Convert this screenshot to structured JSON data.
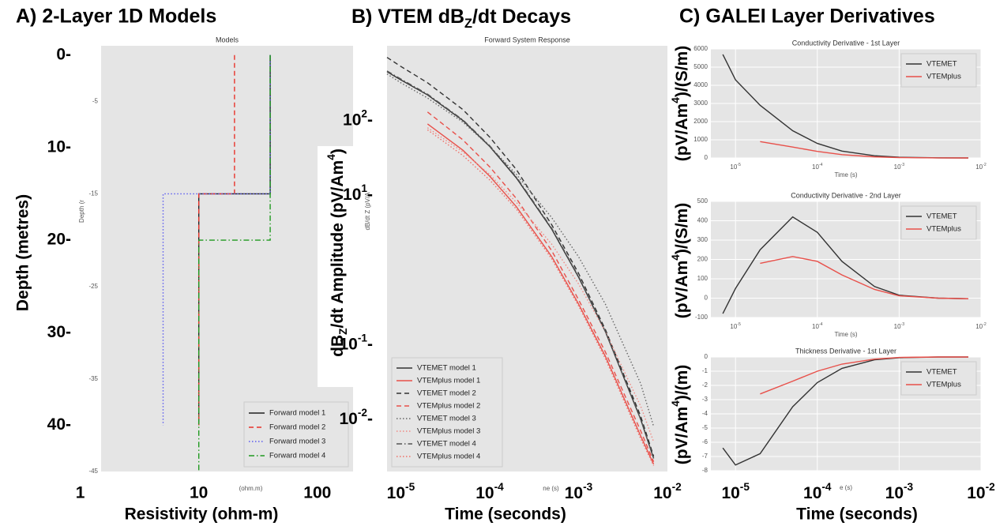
{
  "chart_data": [
    {
      "type": "line",
      "panel_title": "A) 2-Layer 1D Models",
      "title": "Models",
      "xlabel": "Resistivity (ohm-m)",
      "xlabel_small": "(ohm.m)",
      "ylabel": "Depth (metres)",
      "ylabel_small": "Depth (r",
      "xscale": "log",
      "xlim": [
        1.5,
        200
      ],
      "ylim": [
        -45,
        1
      ],
      "yticks": [
        -5,
        -15,
        -25,
        -35,
        -45
      ],
      "overlay_yticks": [
        {
          "value": 0,
          "label": "0-"
        },
        {
          "value": -10,
          "label": "10-"
        },
        {
          "value": -20,
          "label": "20-"
        },
        {
          "value": -30,
          "label": "30-"
        },
        {
          "value": -40,
          "label": "40-"
        }
      ],
      "overlay_xticks": [
        1,
        10,
        100
      ],
      "grid": false,
      "legend": "lower right",
      "series": [
        {
          "name": "Forward model 1",
          "color": "#222222",
          "dash": "solid",
          "x": [
            40,
            40,
            10,
            10
          ],
          "values": [
            0,
            -15,
            -15,
            -40
          ]
        },
        {
          "name": "Forward model 2",
          "color": "#e8322a",
          "dash": "dashed",
          "x": [
            20,
            20,
            10,
            10
          ],
          "values": [
            0,
            -15,
            -15,
            -40
          ]
        },
        {
          "name": "Forward model 3",
          "color": "#5b5bf0",
          "dash": "dotted",
          "x": [
            40,
            40,
            5,
            5
          ],
          "values": [
            0,
            -15,
            -15,
            -40
          ]
        },
        {
          "name": "Forward model 4",
          "color": "#1f9a1f",
          "dash": "dashdot",
          "x": [
            40,
            40,
            10,
            10
          ],
          "values": [
            0,
            -20,
            -20,
            -45
          ]
        }
      ]
    },
    {
      "type": "line",
      "panel_title": [
        {
          "text": "B) VTEM dB"
        },
        {
          "text": "Z",
          "style": "sub"
        },
        {
          "text": "/dt Decays"
        }
      ],
      "title": "Forward System Response",
      "xlabel": "Time (seconds)",
      "xlabel_small": "ne (s)",
      "ylabel": [
        {
          "text": "dB"
        },
        {
          "text": "Z",
          "style": "sub"
        },
        {
          "text": "/dt Amplitude (pV/Am"
        },
        {
          "text": "4",
          "style": "sup"
        },
        {
          "text": ")"
        }
      ],
      "ylabel_small": "dB/dt Z (pV/A",
      "xscale": "log",
      "yscale": "log",
      "xlim": [
        7e-06,
        0.01
      ],
      "ylim": [
        0.002,
        1000
      ],
      "overlay_xticks": [
        {
          "value": 1e-05,
          "label": [
            {
              "text": "10"
            },
            {
              "text": "-5",
              "style": "sup"
            }
          ]
        },
        {
          "value": 0.0001,
          "label": [
            {
              "text": "10"
            },
            {
              "text": "-4",
              "style": "sup"
            }
          ]
        },
        {
          "value": 0.001,
          "label": [
            {
              "text": "10"
            },
            {
              "text": "-3",
              "style": "sup"
            }
          ]
        },
        {
          "value": 0.01,
          "label": [
            {
              "text": "10"
            },
            {
              "text": "-2",
              "style": "sup"
            }
          ]
        }
      ],
      "overlay_yticks": [
        {
          "value": 100,
          "label": [
            {
              "text": "10"
            },
            {
              "text": "2",
              "style": "sup"
            },
            {
              "text": "-"
            }
          ]
        },
        {
          "value": 10,
          "label": [
            {
              "text": "10"
            },
            {
              "text": "1",
              "style": "sup"
            },
            {
              "text": "-"
            }
          ]
        },
        {
          "value": 0.1,
          "label": [
            {
              "text": "10"
            },
            {
              "text": "-1",
              "style": "sup"
            },
            {
              "text": "-"
            }
          ]
        },
        {
          "value": 0.01,
          "label": [
            {
              "text": "10"
            },
            {
              "text": "-2",
              "style": "sup"
            },
            {
              "text": "-"
            }
          ]
        }
      ],
      "grid": false,
      "legend": "lower left",
      "x": [
        7e-06,
        1e-05,
        2e-05,
        5e-05,
        0.0001,
        0.0002,
        0.0005,
        0.001,
        0.002,
        0.005,
        0.007
      ],
      "series": [
        {
          "name": "VTEMET model 1",
          "color": "#333333",
          "dash": "solid",
          "values": [
            450,
            350,
            220,
            100,
            45,
            17,
            3.5,
            0.8,
            0.15,
            0.01,
            0.003
          ]
        },
        {
          "name": "VTEMplus model 1",
          "color": "#e8504a",
          "dash": "solid",
          "values": [
            null,
            null,
            90,
            40,
            18,
            7,
            1.5,
            0.35,
            0.07,
            0.006,
            0.0025
          ]
        },
        {
          "name": "VTEMET model 2",
          "color": "#333333",
          "dash": "dashed",
          "values": [
            700,
            530,
            320,
            140,
            60,
            22,
            4,
            0.9,
            0.16,
            0.011,
            0.0032
          ]
        },
        {
          "name": "VTEMplus model 2",
          "color": "#e8504a",
          "dash": "dashed",
          "values": [
            null,
            null,
            130,
            55,
            24,
            9,
            1.8,
            0.4,
            0.08,
            0.007,
            0.0027
          ]
        },
        {
          "name": "VTEMET model 3",
          "color": "#666666",
          "dash": "dotted",
          "values": [
            420,
            320,
            200,
            95,
            45,
            19,
            5,
            1.5,
            0.35,
            0.03,
            0.008
          ]
        },
        {
          "name": "VTEMplus model 3",
          "color": "#f08a84",
          "dash": "dotted",
          "values": [
            null,
            null,
            80,
            38,
            19,
            8,
            2.2,
            0.65,
            0.15,
            0.015,
            0.005
          ]
        },
        {
          "name": "VTEMET model 4",
          "color": "#555555",
          "dash": "dashdot",
          "values": [
            460,
            360,
            225,
            102,
            46,
            17.5,
            3.6,
            0.82,
            0.15,
            0.01,
            0.003
          ]
        },
        {
          "name": "VTEMplus model 4",
          "color": "#f07068",
          "dash": "dotted",
          "values": [
            null,
            null,
            75,
            34,
            16,
            6.5,
            1.4,
            0.33,
            0.065,
            0.0055,
            0.0024
          ]
        }
      ]
    },
    {
      "type": "line",
      "panel_title": "C) GALEI Layer Derivatives",
      "title": "Conductivity Derivative - 1st Layer",
      "xlabel_small": "Time (s)",
      "ylabel": [
        {
          "text": "(pV/Am"
        },
        {
          "text": "4",
          "style": "sup"
        },
        {
          "text": ")/(S/m)"
        }
      ],
      "xscale": "log",
      "xlim": [
        5e-06,
        0.01
      ],
      "ylim": [
        0,
        6000
      ],
      "xticks": [
        {
          "value": 1e-05,
          "label": [
            {
              "text": "10"
            },
            {
              "text": "-5",
              "style": "sup"
            }
          ]
        },
        {
          "value": 0.0001,
          "label": [
            {
              "text": "10"
            },
            {
              "text": "-4",
              "style": "sup"
            }
          ]
        },
        {
          "value": 0.001,
          "label": [
            {
              "text": "10"
            },
            {
              "text": "-3",
              "style": "sup"
            }
          ]
        },
        {
          "value": 0.01,
          "label": [
            {
              "text": "10"
            },
            {
              "text": "-2",
              "style": "sup"
            }
          ]
        }
      ],
      "yticks": [
        0,
        1000,
        2000,
        3000,
        4000,
        5000,
        6000
      ],
      "grid": true,
      "legend": "upper right",
      "x": [
        7e-06,
        1e-05,
        2e-05,
        5e-05,
        0.0001,
        0.0002,
        0.0005,
        0.001,
        0.003,
        0.007
      ],
      "series": [
        {
          "name": "VTEMET",
          "color": "#333333",
          "dash": "solid",
          "values": [
            5700,
            4300,
            2900,
            1500,
            800,
            380,
            120,
            40,
            5,
            0
          ]
        },
        {
          "name": "VTEMplus",
          "color": "#e8504a",
          "dash": "solid",
          "values": [
            null,
            null,
            900,
            600,
            360,
            180,
            60,
            20,
            3,
            0
          ]
        }
      ]
    },
    {
      "type": "line",
      "title": "Conductivity Derivative - 2nd Layer",
      "xlabel_small": "Time (s)",
      "ylabel": [
        {
          "text": "(pV/Am"
        },
        {
          "text": "4",
          "style": "sup"
        },
        {
          "text": ")/(S/m)"
        }
      ],
      "xscale": "log",
      "xlim": [
        5e-06,
        0.01
      ],
      "ylim": [
        -100,
        500
      ],
      "xticks": [
        {
          "value": 1e-05,
          "label": [
            {
              "text": "10"
            },
            {
              "text": "-5",
              "style": "sup"
            }
          ]
        },
        {
          "value": 0.0001,
          "label": [
            {
              "text": "10"
            },
            {
              "text": "-4",
              "style": "sup"
            }
          ]
        },
        {
          "value": 0.001,
          "label": [
            {
              "text": "10"
            },
            {
              "text": "-3",
              "style": "sup"
            }
          ]
        },
        {
          "value": 0.01,
          "label": [
            {
              "text": "10"
            },
            {
              "text": "-2",
              "style": "sup"
            }
          ]
        }
      ],
      "yticks": [
        -100,
        0,
        100,
        200,
        300,
        400,
        500
      ],
      "grid": true,
      "legend": "upper right",
      "x": [
        7e-06,
        1e-05,
        2e-05,
        5e-05,
        0.0001,
        0.0002,
        0.0005,
        0.001,
        0.003,
        0.007
      ],
      "series": [
        {
          "name": "VTEMET",
          "color": "#333333",
          "dash": "solid",
          "values": [
            -80,
            50,
            250,
            420,
            340,
            190,
            60,
            15,
            0,
            -3
          ]
        },
        {
          "name": "VTEMplus",
          "color": "#e8504a",
          "dash": "solid",
          "values": [
            null,
            null,
            180,
            215,
            190,
            120,
            45,
            12,
            0,
            -3
          ]
        }
      ]
    },
    {
      "type": "line",
      "title": "Thickness Derivative - 1st Layer",
      "xlabel": "Time (seconds)",
      "xlabel_small": "e (s)",
      "ylabel": [
        {
          "text": "(pV/Am"
        },
        {
          "text": "4",
          "style": "sup"
        },
        {
          "text": ")/(m)"
        }
      ],
      "xscale": "log",
      "xlim": [
        5e-06,
        0.01
      ],
      "ylim": [
        -8,
        0
      ],
      "yticks": [
        -8,
        -7,
        -6,
        -5,
        -4,
        -3,
        -2,
        -1,
        0
      ],
      "overlay_xticks": [
        {
          "value": 1e-05,
          "label": [
            {
              "text": "10"
            },
            {
              "text": "-5",
              "style": "sup"
            }
          ]
        },
        {
          "value": 0.0001,
          "label": [
            {
              "text": "10"
            },
            {
              "text": "-4",
              "style": "sup"
            }
          ]
        },
        {
          "value": 0.001,
          "label": [
            {
              "text": "10"
            },
            {
              "text": "-3",
              "style": "sup"
            }
          ]
        },
        {
          "value": 0.01,
          "label": [
            {
              "text": "10"
            },
            {
              "text": "-2",
              "style": "sup"
            }
          ]
        }
      ],
      "grid": true,
      "legend": "upper right",
      "x": [
        7e-06,
        1e-05,
        2e-05,
        5e-05,
        0.0001,
        0.0002,
        0.0005,
        0.001,
        0.003,
        0.007
      ],
      "series": [
        {
          "name": "VTEMET",
          "color": "#333333",
          "dash": "solid",
          "values": [
            -6.4,
            -7.6,
            -6.8,
            -3.5,
            -1.8,
            -0.8,
            -0.2,
            -0.05,
            0,
            0
          ]
        },
        {
          "name": "VTEMplus",
          "color": "#e8504a",
          "dash": "solid",
          "values": [
            null,
            null,
            -2.6,
            -1.7,
            -1,
            -0.5,
            -0.15,
            -0.03,
            0,
            0
          ]
        }
      ]
    }
  ]
}
